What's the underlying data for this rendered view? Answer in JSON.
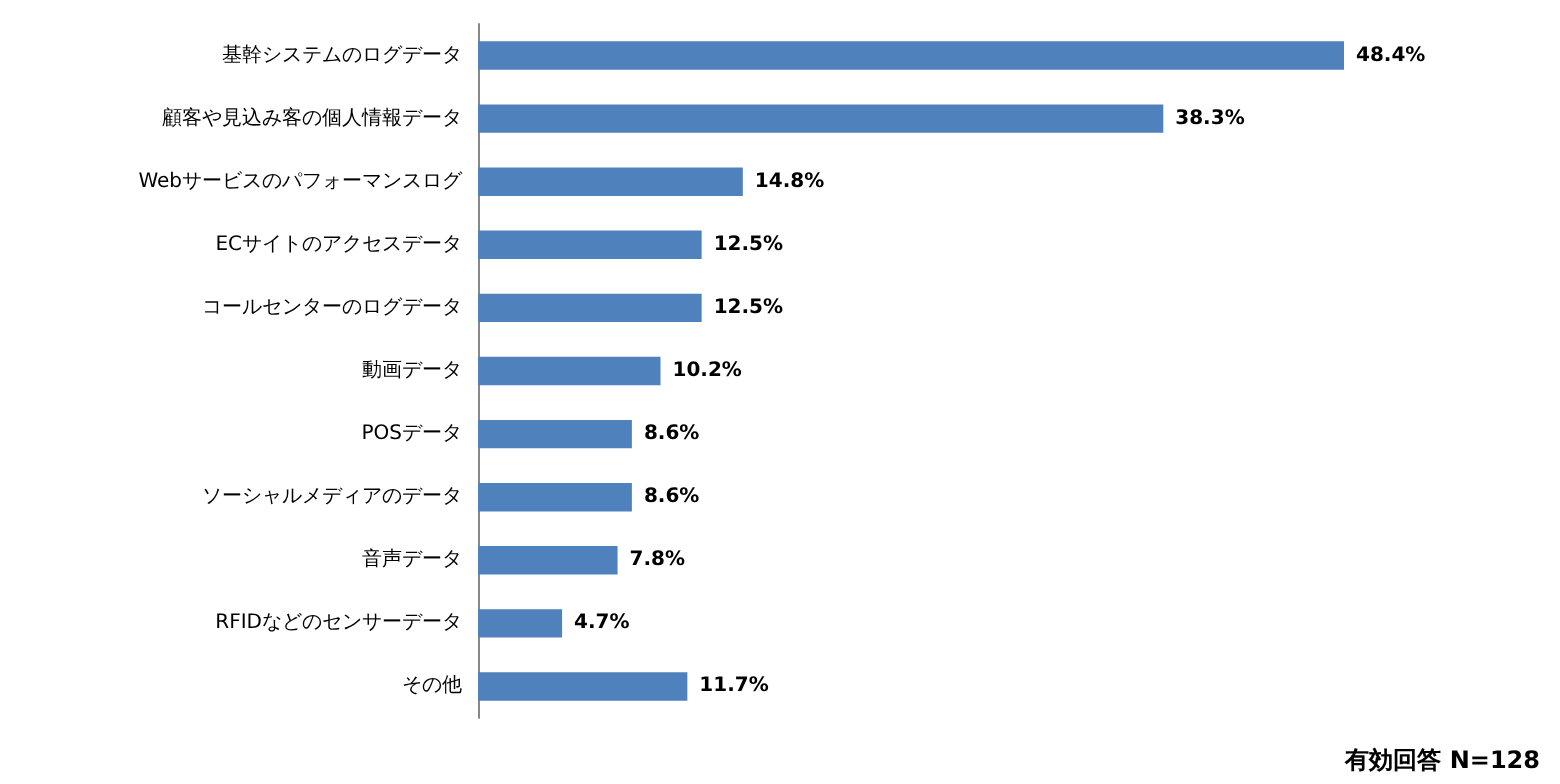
{
  "chart_data": {
    "type": "bar",
    "orientation": "horizontal",
    "categories": [
      "基幹システムのログデータ",
      "顧客や見込み客の個人情報データ",
      "Webサービスのパフォーマンスログ",
      "ECサイトのアクセスデータ",
      "コールセンターのログデータ",
      "動画データ",
      "POSデータ",
      "ソーシャルメディアのデータ",
      "音声データ",
      "RFIDなどのセンサーデータ",
      "その他"
    ],
    "values": [
      48.4,
      38.3,
      14.8,
      12.5,
      12.5,
      10.2,
      8.6,
      8.6,
      7.8,
      4.7,
      11.7
    ],
    "value_labels": [
      "48.4%",
      "38.3%",
      "14.8%",
      "12.5%",
      "12.5%",
      "10.2%",
      "8.6%",
      "8.6%",
      "7.8%",
      "4.7%",
      "11.7%"
    ],
    "color": "#4f81bd",
    "annotations": [
      "有効回答 N=128"
    ]
  }
}
